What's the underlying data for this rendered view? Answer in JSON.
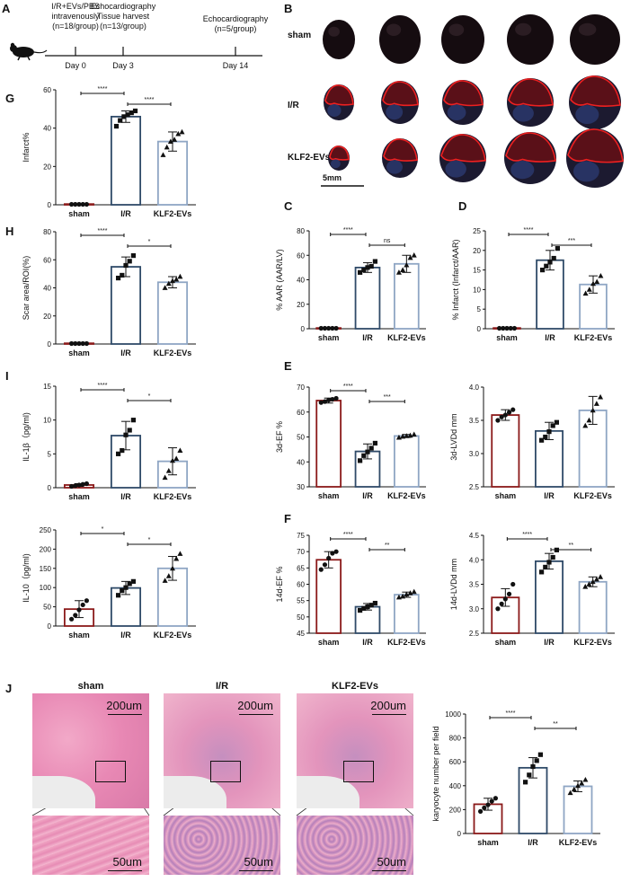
{
  "panel_letters": [
    "A",
    "B",
    "C",
    "D",
    "E",
    "F",
    "G",
    "H",
    "I",
    "J"
  ],
  "timeline": {
    "events": [
      {
        "top": "I/R+EVs/PBS\nintravenously\n(n=18/group)",
        "day": "Day 0"
      },
      {
        "top": "Echocardiography\nTissue harvest\n(n=13/group)",
        "day": "Day 3"
      },
      {
        "top": "Echocardiography\n(n=5/group)",
        "day": "Day 14"
      }
    ]
  },
  "ttc": {
    "rows": [
      "sham",
      "I/R",
      "KLF2-EVs"
    ],
    "scale_bar": "5mm"
  },
  "histology": {
    "groups": [
      "sham",
      "I/R",
      "KLF2-EVs"
    ],
    "top_scale": "200um",
    "bottom_scale": "50um"
  },
  "colors": {
    "sham": "#8b1a1a",
    "ir": "#2f4a68",
    "klf2": "#8fa6c4"
  },
  "chart_data": [
    {
      "id": "G",
      "type": "bar",
      "categories": [
        "sham",
        "I/R",
        "KLF2-EVs"
      ],
      "ylabel": "Infarct%",
      "ylim": [
        0,
        60
      ],
      "yticks": [
        0,
        20,
        40,
        60
      ],
      "means": [
        0,
        46,
        33
      ],
      "errors": [
        0,
        3,
        5
      ],
      "points": [
        [
          0,
          0,
          0,
          0,
          0
        ],
        [
          41,
          44,
          46,
          47,
          48,
          49
        ],
        [
          26,
          30,
          33,
          34,
          37,
          38
        ]
      ],
      "sig": [
        {
          "a": 0,
          "b": 1,
          "label": "****"
        },
        {
          "a": 1,
          "b": 2,
          "label": "****"
        }
      ]
    },
    {
      "id": "H",
      "type": "bar",
      "categories": [
        "sham",
        "I/R",
        "KLF2-EVs"
      ],
      "ylabel": "Scar area/ROI(%)",
      "ylim": [
        0,
        80
      ],
      "yticks": [
        0,
        20,
        40,
        60,
        80
      ],
      "means": [
        0,
        55,
        44
      ],
      "errors": [
        0,
        7,
        4
      ],
      "points": [
        [
          0,
          0,
          0,
          0,
          0
        ],
        [
          47,
          49,
          56,
          59,
          63
        ],
        [
          40,
          43,
          45,
          46,
          48
        ]
      ],
      "sig": [
        {
          "a": 0,
          "b": 1,
          "label": "****"
        },
        {
          "a": 1,
          "b": 2,
          "label": "*"
        }
      ]
    },
    {
      "id": "C",
      "type": "bar",
      "categories": [
        "sham",
        "I/R",
        "KLF2-EVs"
      ],
      "ylabel": "% AAR (AAR/LV)",
      "ylim": [
        0,
        80
      ],
      "yticks": [
        0,
        20,
        40,
        60,
        80
      ],
      "means": [
        0,
        50,
        53
      ],
      "errors": [
        0,
        4,
        7
      ],
      "points": [
        [
          0,
          0,
          0,
          0,
          0
        ],
        [
          46,
          48,
          50,
          51,
          55
        ],
        [
          46,
          48,
          52,
          58,
          60
        ]
      ],
      "sig": [
        {
          "a": 0,
          "b": 1,
          "label": "****"
        },
        {
          "a": 1,
          "b": 2,
          "label": "ns"
        }
      ]
    },
    {
      "id": "D",
      "type": "bar",
      "categories": [
        "sham",
        "I/R",
        "KLF2-EVs"
      ],
      "ylabel": "% Infarct (Infarct/AAR)",
      "ylim": [
        0,
        25
      ],
      "yticks": [
        0,
        5,
        10,
        15,
        20,
        25
      ],
      "means": [
        0,
        17.5,
        11.3
      ],
      "errors": [
        0,
        2.5,
        2.2
      ],
      "points": [
        [
          0,
          0,
          0,
          0,
          0
        ],
        [
          15,
          16,
          17,
          18,
          20.5
        ],
        [
          9,
          10,
          11.5,
          12,
          13.5
        ]
      ],
      "sig": [
        {
          "a": 0,
          "b": 1,
          "label": "****"
        },
        {
          "a": 1,
          "b": 2,
          "label": "***"
        }
      ]
    },
    {
      "id": "I1",
      "type": "bar",
      "categories": [
        "sham",
        "I/R",
        "KLF2-EVs"
      ],
      "ylabel": "IL-1β（pg/ml)",
      "ylim": [
        0,
        15
      ],
      "yticks": [
        0,
        5,
        10,
        15
      ],
      "means": [
        0.4,
        7.7,
        3.9
      ],
      "errors": [
        0.2,
        2.1,
        2.0
      ],
      "points": [
        [
          0.2,
          0.3,
          0.4,
          0.5,
          0.6
        ],
        [
          5,
          5.5,
          7.8,
          8.5,
          10
        ],
        [
          1.5,
          2.5,
          4,
          4.3,
          5.5
        ]
      ],
      "sig": [
        {
          "a": 0,
          "b": 1,
          "label": "****"
        },
        {
          "a": 1,
          "b": 2,
          "label": "*"
        }
      ]
    },
    {
      "id": "I2",
      "type": "bar",
      "categories": [
        "sham",
        "I/R",
        "KLF2-EVs"
      ],
      "ylabel": "IL-10（pg/ml)",
      "ylim": [
        0,
        250
      ],
      "yticks": [
        0,
        50,
        100,
        150,
        200,
        250
      ],
      "means": [
        44,
        99,
        150
      ],
      "errors": [
        22,
        17,
        31
      ],
      "points": [
        [
          18,
          28,
          42,
          55,
          66
        ],
        [
          80,
          92,
          100,
          110,
          116
        ],
        [
          118,
          130,
          150,
          175,
          188
        ]
      ],
      "sig": [
        {
          "a": 0,
          "b": 1,
          "label": "*"
        },
        {
          "a": 1,
          "b": 2,
          "label": "*"
        }
      ]
    },
    {
      "id": "E1",
      "type": "bar",
      "categories": [
        "sham",
        "I/R",
        "KLF2-EVs"
      ],
      "ylabel": "3d-EF %",
      "ylim": [
        30,
        70
      ],
      "yticks": [
        30,
        40,
        50,
        60,
        70
      ],
      "means": [
        64.6,
        44.2,
        50.4
      ],
      "errors": [
        1,
        3,
        0.6
      ],
      "points": [
        [
          63.8,
          64.2,
          64.8,
          65.1,
          65.5
        ],
        [
          40.5,
          42.5,
          44,
          45.5,
          47.5
        ],
        [
          49.8,
          50.2,
          50.4,
          50.6,
          51
        ]
      ],
      "sig": [
        {
          "a": 0,
          "b": 1,
          "label": "****"
        },
        {
          "a": 1,
          "b": 2,
          "label": "***"
        }
      ]
    },
    {
      "id": "E2",
      "type": "bar",
      "categories": [
        "sham",
        "I/R",
        "KLF2-EVs"
      ],
      "ylabel": "3d-LVDd mm",
      "ylim": [
        2.5,
        4.0
      ],
      "yticks": [
        2.5,
        3.0,
        3.5,
        4.0
      ],
      "means": [
        3.58,
        3.34,
        3.65
      ],
      "errors": [
        0.08,
        0.13,
        0.21
      ],
      "points": [
        [
          3.5,
          3.55,
          3.58,
          3.62,
          3.66
        ],
        [
          3.2,
          3.25,
          3.33,
          3.42,
          3.47
        ],
        [
          3.42,
          3.5,
          3.65,
          3.75,
          3.85
        ]
      ],
      "sig": []
    },
    {
      "id": "F1",
      "type": "bar",
      "categories": [
        "sham",
        "I/R",
        "KLF2-EVs"
      ],
      "ylabel": "14d-EF %",
      "ylim": [
        45,
        75
      ],
      "yticks": [
        45,
        50,
        55,
        60,
        65,
        70,
        75
      ],
      "means": [
        67.5,
        53.1,
        56.8
      ],
      "errors": [
        2.5,
        1,
        0.8
      ],
      "points": [
        [
          64.5,
          66,
          68,
          69.5,
          70
        ],
        [
          52,
          52.6,
          53.1,
          53.6,
          54.2
        ],
        [
          56,
          56.3,
          56.9,
          57.3,
          57.7
        ]
      ],
      "sig": [
        {
          "a": 0,
          "b": 1,
          "label": "****"
        },
        {
          "a": 1,
          "b": 2,
          "label": "**"
        }
      ]
    },
    {
      "id": "F2",
      "type": "bar",
      "categories": [
        "sham",
        "I/R",
        "KLF2-EVs"
      ],
      "ylabel": "14d-LVDd mm",
      "ylim": [
        2.5,
        4.5
      ],
      "yticks": [
        2.5,
        3.0,
        3.5,
        4.0,
        4.5
      ],
      "means": [
        3.23,
        3.97,
        3.55
      ],
      "errors": [
        0.18,
        0.16,
        0.1
      ],
      "points": [
        [
          3.0,
          3.1,
          3.2,
          3.3,
          3.5
        ],
        [
          3.75,
          3.85,
          3.95,
          4.05,
          4.2
        ],
        [
          3.45,
          3.5,
          3.55,
          3.6,
          3.65
        ]
      ],
      "sig": [
        {
          "a": 0,
          "b": 1,
          "label": "****"
        },
        {
          "a": 1,
          "b": 2,
          "label": "**"
        }
      ]
    },
    {
      "id": "J",
      "type": "bar",
      "categories": [
        "sham",
        "I/R",
        "KLF2-EVs"
      ],
      "ylabel": "karyocyte number per field",
      "ylim": [
        0,
        1000
      ],
      "yticks": [
        0,
        200,
        400,
        600,
        800,
        1000
      ],
      "means": [
        245,
        550,
        395
      ],
      "errors": [
        50,
        85,
        45
      ],
      "points": [
        [
          185,
          215,
          240,
          270,
          295
        ],
        [
          430,
          490,
          560,
          610,
          660
        ],
        [
          340,
          370,
          400,
          420,
          450
        ]
      ],
      "sig": [
        {
          "a": 0,
          "b": 1,
          "label": "****"
        },
        {
          "a": 1,
          "b": 2,
          "label": "**"
        }
      ]
    }
  ]
}
